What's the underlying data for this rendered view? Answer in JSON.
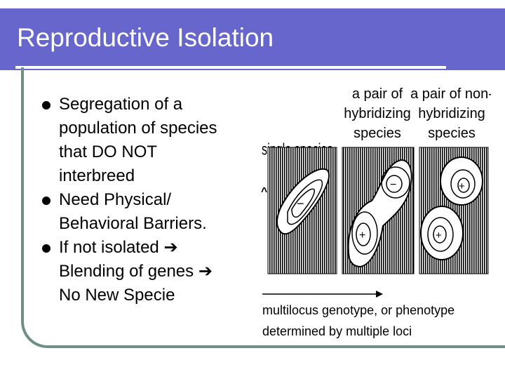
{
  "slide": {
    "title": "Reproductive Isolation",
    "bullets": [
      {
        "line1": "Segregation of a",
        "line2": "population of species",
        "line3": "that DO NOT",
        "line4": "interbreed"
      },
      {
        "line1": "Need Physical/",
        "line2": "Behavioral Barriers."
      },
      {
        "line1": "If not isolated",
        "line2": "Blending of genes",
        "line3": "No New Specie"
      }
    ]
  },
  "figure": {
    "headers": {
      "single": "single species",
      "hybrid_line1": "a pair of",
      "hybrid_line2": "hybridizing",
      "hybrid_line3": "species",
      "nonhybrid_line1": "a pair of non-",
      "nonhybrid_line2": "hybridizing",
      "nonhybrid_line3": "species"
    },
    "symbols": {
      "minus": "−",
      "plus": "+"
    },
    "caption_line1": "multilocus genotype, or phenotype",
    "caption_line2": "determined by multiple loci",
    "y_axis_mark": "^"
  }
}
